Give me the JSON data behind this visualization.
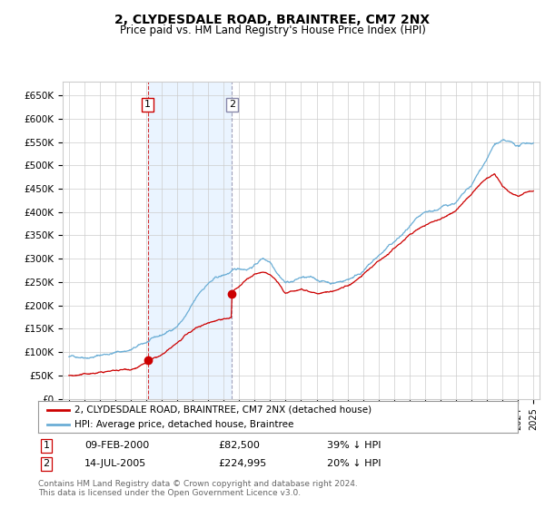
{
  "title": "2, CLYDESDALE ROAD, BRAINTREE, CM7 2NX",
  "subtitle": "Price paid vs. HM Land Registry's House Price Index (HPI)",
  "yticks": [
    0,
    50000,
    100000,
    150000,
    200000,
    250000,
    300000,
    350000,
    400000,
    450000,
    500000,
    550000,
    600000,
    650000
  ],
  "ytick_labels": [
    "£0",
    "£50K",
    "£100K",
    "£150K",
    "£200K",
    "£250K",
    "£300K",
    "£350K",
    "£400K",
    "£450K",
    "£500K",
    "£550K",
    "£600K",
    "£650K"
  ],
  "hpi_color": "#6baed6",
  "price_color": "#cc0000",
  "vline1_color": "#cc0000",
  "vline2_color": "#8888aa",
  "shade_color": "#ddeeff",
  "background_color": "#ffffff",
  "grid_color": "#cccccc",
  "sale1_year": 2000.1,
  "sale1_value": 82500,
  "sale2_year": 2005.54,
  "sale2_value": 224995,
  "legend_entries": [
    "2, CLYDESDALE ROAD, BRAINTREE, CM7 2NX (detached house)",
    "HPI: Average price, detached house, Braintree"
  ],
  "table_rows": [
    {
      "num": "1",
      "date": "09-FEB-2000",
      "price": "£82,500",
      "pct": "39% ↓ HPI"
    },
    {
      "num": "2",
      "date": "14-JUL-2005",
      "price": "£224,995",
      "pct": "20% ↓ HPI"
    }
  ],
  "footnote": "Contains HM Land Registry data © Crown copyright and database right 2024.\nThis data is licensed under the Open Government Licence v3.0.",
  "hpi_data": [
    [
      1995.0,
      90000
    ],
    [
      1995.5,
      91000
    ],
    [
      1996.0,
      94000
    ],
    [
      1996.5,
      97000
    ],
    [
      1997.0,
      101000
    ],
    [
      1997.5,
      105000
    ],
    [
      1998.0,
      109000
    ],
    [
      1998.5,
      112000
    ],
    [
      1999.0,
      116000
    ],
    [
      1999.5,
      123000
    ],
    [
      2000.0,
      130000
    ],
    [
      2000.5,
      137000
    ],
    [
      2001.0,
      143000
    ],
    [
      2001.5,
      152000
    ],
    [
      2002.0,
      165000
    ],
    [
      2002.5,
      185000
    ],
    [
      2003.0,
      210000
    ],
    [
      2003.5,
      235000
    ],
    [
      2004.0,
      255000
    ],
    [
      2004.5,
      265000
    ],
    [
      2005.0,
      270000
    ],
    [
      2005.5,
      278000
    ],
    [
      2006.0,
      282000
    ],
    [
      2006.5,
      285000
    ],
    [
      2007.0,
      295000
    ],
    [
      2007.5,
      310000
    ],
    [
      2008.0,
      305000
    ],
    [
      2008.5,
      285000
    ],
    [
      2009.0,
      268000
    ],
    [
      2009.5,
      272000
    ],
    [
      2010.0,
      280000
    ],
    [
      2010.5,
      278000
    ],
    [
      2011.0,
      272000
    ],
    [
      2011.5,
      270000
    ],
    [
      2012.0,
      268000
    ],
    [
      2012.5,
      272000
    ],
    [
      2013.0,
      278000
    ],
    [
      2013.5,
      288000
    ],
    [
      2014.0,
      300000
    ],
    [
      2014.5,
      315000
    ],
    [
      2015.0,
      330000
    ],
    [
      2015.5,
      345000
    ],
    [
      2016.0,
      358000
    ],
    [
      2016.5,
      372000
    ],
    [
      2017.0,
      388000
    ],
    [
      2017.5,
      400000
    ],
    [
      2018.0,
      408000
    ],
    [
      2018.5,
      412000
    ],
    [
      2019.0,
      418000
    ],
    [
      2019.5,
      425000
    ],
    [
      2020.0,
      432000
    ],
    [
      2020.5,
      448000
    ],
    [
      2021.0,
      462000
    ],
    [
      2021.5,
      490000
    ],
    [
      2022.0,
      520000
    ],
    [
      2022.5,
      550000
    ],
    [
      2023.0,
      555000
    ],
    [
      2023.5,
      548000
    ],
    [
      2024.0,
      540000
    ],
    [
      2024.5,
      545000
    ],
    [
      2025.0,
      548000
    ]
  ],
  "price_data": [
    [
      1995.0,
      50000
    ],
    [
      1995.5,
      51000
    ],
    [
      1996.0,
      52000
    ],
    [
      1996.5,
      54000
    ],
    [
      1997.0,
      56000
    ],
    [
      1997.5,
      58000
    ],
    [
      1998.0,
      60000
    ],
    [
      1998.5,
      62000
    ],
    [
      1999.0,
      65000
    ],
    [
      1999.5,
      72000
    ],
    [
      2000.0,
      78000
    ],
    [
      2000.1,
      82500
    ],
    [
      2000.5,
      86000
    ],
    [
      2001.0,
      92000
    ],
    [
      2001.5,
      102000
    ],
    [
      2002.0,
      115000
    ],
    [
      2002.5,
      128000
    ],
    [
      2003.0,
      138000
    ],
    [
      2003.5,
      148000
    ],
    [
      2004.0,
      155000
    ],
    [
      2004.5,
      162000
    ],
    [
      2005.0,
      168000
    ],
    [
      2005.49,
      170000
    ],
    [
      2005.54,
      224995
    ],
    [
      2006.0,
      235000
    ],
    [
      2006.5,
      248000
    ],
    [
      2007.0,
      258000
    ],
    [
      2007.5,
      262000
    ],
    [
      2008.0,
      255000
    ],
    [
      2008.5,
      238000
    ],
    [
      2009.0,
      212000
    ],
    [
      2009.5,
      218000
    ],
    [
      2010.0,
      224000
    ],
    [
      2010.5,
      222000
    ],
    [
      2011.0,
      218000
    ],
    [
      2011.5,
      220000
    ],
    [
      2012.0,
      222000
    ],
    [
      2012.5,
      228000
    ],
    [
      2013.0,
      235000
    ],
    [
      2013.5,
      245000
    ],
    [
      2014.0,
      258000
    ],
    [
      2014.5,
      272000
    ],
    [
      2015.0,
      285000
    ],
    [
      2015.5,
      300000
    ],
    [
      2016.0,
      315000
    ],
    [
      2016.5,
      330000
    ],
    [
      2017.0,
      345000
    ],
    [
      2017.5,
      358000
    ],
    [
      2018.0,
      368000
    ],
    [
      2018.5,
      375000
    ],
    [
      2019.0,
      382000
    ],
    [
      2019.5,
      390000
    ],
    [
      2020.0,
      400000
    ],
    [
      2020.5,
      418000
    ],
    [
      2021.0,
      435000
    ],
    [
      2021.5,
      455000
    ],
    [
      2022.0,
      472000
    ],
    [
      2022.5,
      480000
    ],
    [
      2023.0,
      450000
    ],
    [
      2023.5,
      435000
    ],
    [
      2024.0,
      428000
    ],
    [
      2024.5,
      438000
    ],
    [
      2025.0,
      445000
    ]
  ]
}
